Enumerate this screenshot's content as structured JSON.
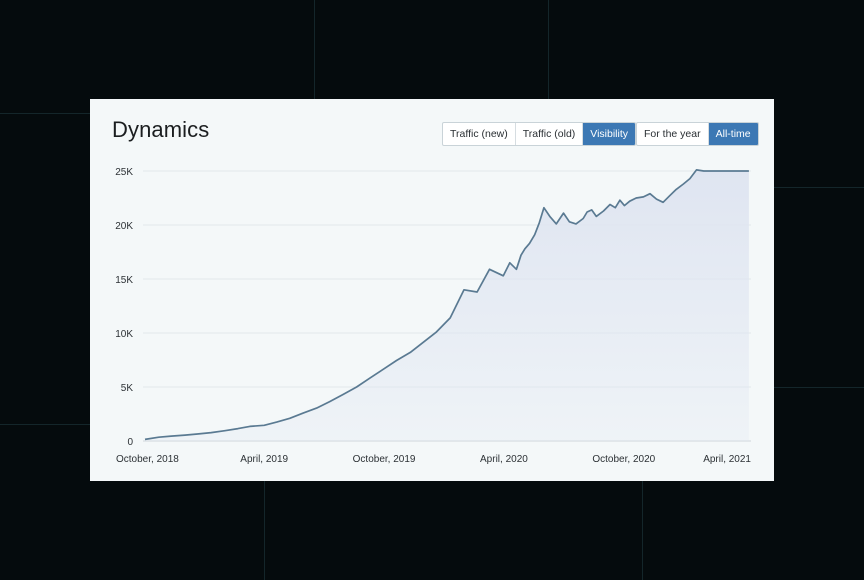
{
  "card": {
    "title": "Dynamics",
    "metric_tabs": [
      {
        "label": "Traffic (new)",
        "active": false
      },
      {
        "label": "Traffic (old)",
        "active": false
      },
      {
        "label": "Visibility",
        "active": true
      }
    ],
    "range_tabs": [
      {
        "label": "For the year",
        "active": false
      },
      {
        "label": "All-time",
        "active": true
      }
    ]
  },
  "colors": {
    "accent": "#3c78b4",
    "line": "#5a7a92",
    "area": "#dfe5f1",
    "background": "#050b0d"
  },
  "chart_data": {
    "type": "area",
    "title": "Dynamics",
    "xlabel": "",
    "ylabel": "",
    "ylim": [
      0,
      25000
    ],
    "y_ticks": [
      0,
      5000,
      10000,
      15000,
      20000,
      25000
    ],
    "y_tick_labels": [
      "0",
      "5K",
      "10K",
      "15K",
      "20K",
      "25K"
    ],
    "x_ticks": [
      "2018-10-01",
      "2019-04-01",
      "2019-10-01",
      "2020-04-01",
      "2020-10-01",
      "2021-04-01"
    ],
    "x_tick_labels": [
      "October, 2018",
      "April, 2019",
      "October, 2019",
      "April, 2020",
      "October, 2020",
      "April, 2021"
    ],
    "grid": true,
    "series": [
      {
        "x": [
          "2018-10-01",
          "2018-10-22",
          "2018-11-10",
          "2018-12-01",
          "2018-12-20",
          "2019-01-10",
          "2019-01-31",
          "2019-02-20",
          "2019-03-10",
          "2019-04-01",
          "2019-04-20",
          "2019-05-10",
          "2019-05-31",
          "2019-06-20",
          "2019-07-10",
          "2019-07-30",
          "2019-08-20",
          "2019-09-10",
          "2019-09-30",
          "2019-10-20",
          "2019-11-10",
          "2019-11-30",
          "2019-12-20",
          "2020-01-10",
          "2020-01-31",
          "2020-02-20",
          "2020-03-10",
          "2020-03-31",
          "2020-04-10",
          "2020-04-20",
          "2020-04-27",
          "2020-05-03",
          "2020-05-10",
          "2020-05-18",
          "2020-05-25",
          "2020-06-01",
          "2020-06-10",
          "2020-06-20",
          "2020-07-01",
          "2020-07-10",
          "2020-07-20",
          "2020-07-31",
          "2020-08-06",
          "2020-08-13",
          "2020-08-20",
          "2020-08-31",
          "2020-09-10",
          "2020-09-18",
          "2020-09-25",
          "2020-10-02",
          "2020-10-10",
          "2020-10-20",
          "2020-10-31",
          "2020-11-10",
          "2020-11-20",
          "2020-11-30",
          "2020-12-10",
          "2020-12-20",
          "2020-12-31",
          "2021-01-10",
          "2021-01-20",
          "2021-01-31",
          "2021-02-10",
          "2021-02-20",
          "2021-03-01",
          "2021-03-10",
          "2021-03-20",
          "2021-03-31",
          "2021-04-10"
        ],
        "values": [
          150,
          350,
          450,
          550,
          650,
          780,
          950,
          1150,
          1350,
          1450,
          1750,
          2100,
          2600,
          3050,
          3650,
          4300,
          5000,
          5850,
          6650,
          7450,
          8200,
          9150,
          10100,
          11400,
          14000,
          13800,
          15900,
          15300,
          16500,
          15900,
          17200,
          17800,
          18300,
          19100,
          20200,
          21600,
          20800,
          20100,
          21100,
          20300,
          20100,
          20600,
          21200,
          21400,
          20800,
          21300,
          21900,
          21600,
          22300,
          21800,
          22200,
          22500,
          22600,
          22900,
          22400,
          22100,
          22700,
          23300,
          23800,
          24300,
          25100,
          25000,
          25000,
          25000,
          25000,
          25000,
          25000,
          25000,
          25000
        ]
      }
    ]
  }
}
